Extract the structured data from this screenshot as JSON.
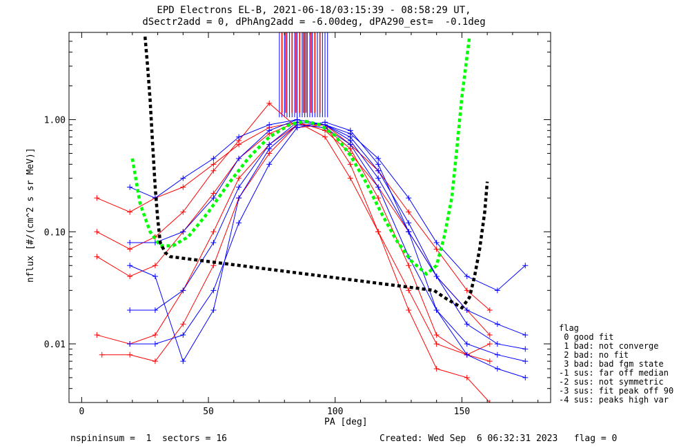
{
  "title_line1": "EPD Electrons EL-B, 2021-06-18/03:15:39 - 08:58:29 UT,",
  "title_line2": "dSectr2add = 0, dPhAng2add = -6.00deg, dPA290_est=  -0.1deg",
  "footer_left": "nspininsum =  1  sectors = 16",
  "footer_right": "Created: Wed Sep  6 06:32:31 2023   flag = 0",
  "legend": {
    "title": "flag",
    "items": [
      " 0 good fit",
      " 1 bad: not converge",
      " 2 bad: no fit",
      " 3 bad: bad fgm state",
      "-1 sus: far off median",
      "-2 sus: not symmetric",
      "-3 sus: fit peak off 90",
      "-4 sus: peaks high var"
    ]
  },
  "chart_data": {
    "type": "line",
    "xlabel": "PA [deg]",
    "ylabel": "nflux [#/(cm^2 s sr MeV)]",
    "xlim": [
      -5,
      185
    ],
    "ylim": [
      0.003,
      6
    ],
    "yscale": "log",
    "xticks": [
      0,
      50,
      100,
      150
    ],
    "xtick_labels": [
      "0",
      "50",
      "100",
      "150"
    ],
    "yticks": [
      0.01,
      0.1,
      1.0
    ],
    "ytick_labels": [
      "0.01",
      "0.10",
      "1.00"
    ],
    "colors": {
      "red": "#ff0000",
      "blue": "#0000ff",
      "green": "#00ff00",
      "black": "#000000"
    },
    "series": [
      {
        "color": "red",
        "style": "line+plus",
        "x": [
          6,
          19,
          29,
          40,
          52,
          62,
          74,
          85,
          96,
          106,
          117,
          129,
          140,
          152,
          161
        ],
        "y": [
          0.06,
          0.04,
          0.05,
          0.1,
          0.22,
          0.45,
          0.75,
          0.95,
          0.8,
          0.5,
          0.25,
          0.1,
          0.04,
          0.02,
          0.012
        ]
      },
      {
        "color": "red",
        "style": "line+plus",
        "x": [
          6,
          19,
          29,
          40,
          52,
          62,
          74,
          85,
          96,
          106,
          117,
          129,
          140,
          152,
          161
        ],
        "y": [
          0.012,
          0.01,
          0.012,
          0.03,
          0.1,
          0.3,
          0.6,
          0.9,
          0.85,
          0.55,
          0.2,
          0.05,
          0.012,
          0.008,
          0.007
        ]
      },
      {
        "color": "red",
        "style": "line+plus",
        "x": [
          6,
          19,
          29,
          40,
          52,
          62,
          74,
          85,
          96,
          106,
          117,
          129,
          140,
          152,
          161
        ],
        "y": [
          0.2,
          0.15,
          0.2,
          0.25,
          0.4,
          0.6,
          0.85,
          0.95,
          0.7,
          0.3,
          0.1,
          0.03,
          0.01,
          0.008,
          0.01
        ]
      },
      {
        "color": "red",
        "style": "line+plus",
        "x": [
          8,
          19,
          29,
          40,
          52,
          62,
          74,
          85,
          96,
          106,
          117,
          129,
          140,
          152,
          161
        ],
        "y": [
          0.008,
          0.008,
          0.007,
          0.015,
          0.05,
          0.2,
          0.5,
          0.9,
          0.9,
          0.4,
          0.1,
          0.02,
          0.006,
          0.005,
          0.003
        ]
      },
      {
        "color": "red",
        "style": "line+plus",
        "x": [
          6,
          19,
          29,
          40,
          52,
          62,
          74,
          85,
          96,
          106,
          117,
          129,
          140,
          152,
          161
        ],
        "y": [
          0.1,
          0.07,
          0.09,
          0.15,
          0.35,
          0.65,
          1.4,
          0.85,
          0.9,
          0.6,
          0.35,
          0.15,
          0.07,
          0.03,
          0.02
        ]
      },
      {
        "color": "blue",
        "style": "line+plus",
        "x": [
          19,
          29,
          40,
          52,
          62,
          74,
          85,
          96,
          106,
          117,
          129,
          140,
          152,
          164,
          175
        ],
        "y": [
          0.08,
          0.08,
          0.1,
          0.2,
          0.45,
          0.8,
          1.0,
          0.9,
          0.65,
          0.3,
          0.1,
          0.04,
          0.02,
          0.015,
          0.012
        ]
      },
      {
        "color": "blue",
        "style": "line+plus",
        "x": [
          19,
          29,
          40,
          52,
          62,
          74,
          85,
          96,
          106,
          117,
          129,
          140,
          152,
          164,
          175
        ],
        "y": [
          0.02,
          0.02,
          0.03,
          0.08,
          0.25,
          0.6,
          0.95,
          0.9,
          0.7,
          0.35,
          0.12,
          0.04,
          0.015,
          0.01,
          0.009
        ]
      },
      {
        "color": "blue",
        "style": "line+plus",
        "x": [
          19,
          29,
          40,
          52,
          62,
          74,
          85,
          96,
          106,
          117,
          129,
          140,
          152,
          164,
          175
        ],
        "y": [
          0.01,
          0.01,
          0.012,
          0.03,
          0.12,
          0.4,
          0.85,
          0.95,
          0.8,
          0.4,
          0.1,
          0.02,
          0.008,
          0.006,
          0.005
        ]
      },
      {
        "color": "blue",
        "style": "line+plus",
        "x": [
          19,
          29,
          40,
          52,
          62,
          74,
          85,
          96,
          106,
          117,
          129,
          140,
          152,
          164,
          175
        ],
        "y": [
          0.25,
          0.2,
          0.3,
          0.45,
          0.7,
          0.9,
          1.0,
          0.9,
          0.75,
          0.45,
          0.2,
          0.08,
          0.04,
          0.03,
          0.05
        ]
      },
      {
        "color": "blue",
        "style": "line+plus",
        "x": [
          19,
          29,
          40,
          52,
          62,
          74,
          85,
          96,
          106,
          117,
          129,
          140,
          152,
          164,
          175
        ],
        "y": [
          0.05,
          0.04,
          0.007,
          0.02,
          0.2,
          0.55,
          0.9,
          0.85,
          0.6,
          0.25,
          0.06,
          0.02,
          0.01,
          0.008,
          0.007
        ]
      },
      {
        "color": "green",
        "style": "dashed-fit",
        "x": [
          20,
          23,
          27,
          31,
          36,
          42,
          50,
          58,
          66,
          74,
          82,
          88,
          94,
          100,
          106,
          112,
          118,
          124,
          130,
          136,
          140,
          143,
          146,
          148,
          150,
          153
        ],
        "y": [
          0.45,
          0.18,
          0.1,
          0.075,
          0.075,
          0.09,
          0.15,
          0.27,
          0.46,
          0.7,
          0.9,
          0.97,
          0.9,
          0.72,
          0.48,
          0.28,
          0.15,
          0.085,
          0.055,
          0.042,
          0.05,
          0.09,
          0.2,
          0.55,
          1.6,
          5.5
        ]
      },
      {
        "color": "black",
        "style": "dashed-fit",
        "x": [
          25,
          26,
          27,
          28,
          29,
          30,
          31,
          33,
          35,
          139,
          143,
          147,
          150,
          153,
          155,
          157,
          159,
          160
        ],
        "y": [
          5.5,
          3.0,
          1.5,
          0.6,
          0.25,
          0.13,
          0.08,
          0.065,
          0.06,
          0.03,
          0.026,
          0.023,
          0.021,
          0.026,
          0.04,
          0.07,
          0.15,
          0.28
        ]
      }
    ],
    "offscale_vertical_lines": {
      "note": "dense vertical lines near PA 75-98 rising above the top of the axis",
      "blue_x": [
        78,
        79,
        80,
        81,
        82,
        83,
        84,
        85,
        86,
        87,
        88,
        89,
        90,
        91,
        92,
        93,
        94,
        95,
        96,
        97
      ],
      "red_x": [
        79,
        80.5,
        83,
        84.5,
        86,
        87.5,
        88.5,
        90.5,
        92,
        94
      ]
    }
  }
}
